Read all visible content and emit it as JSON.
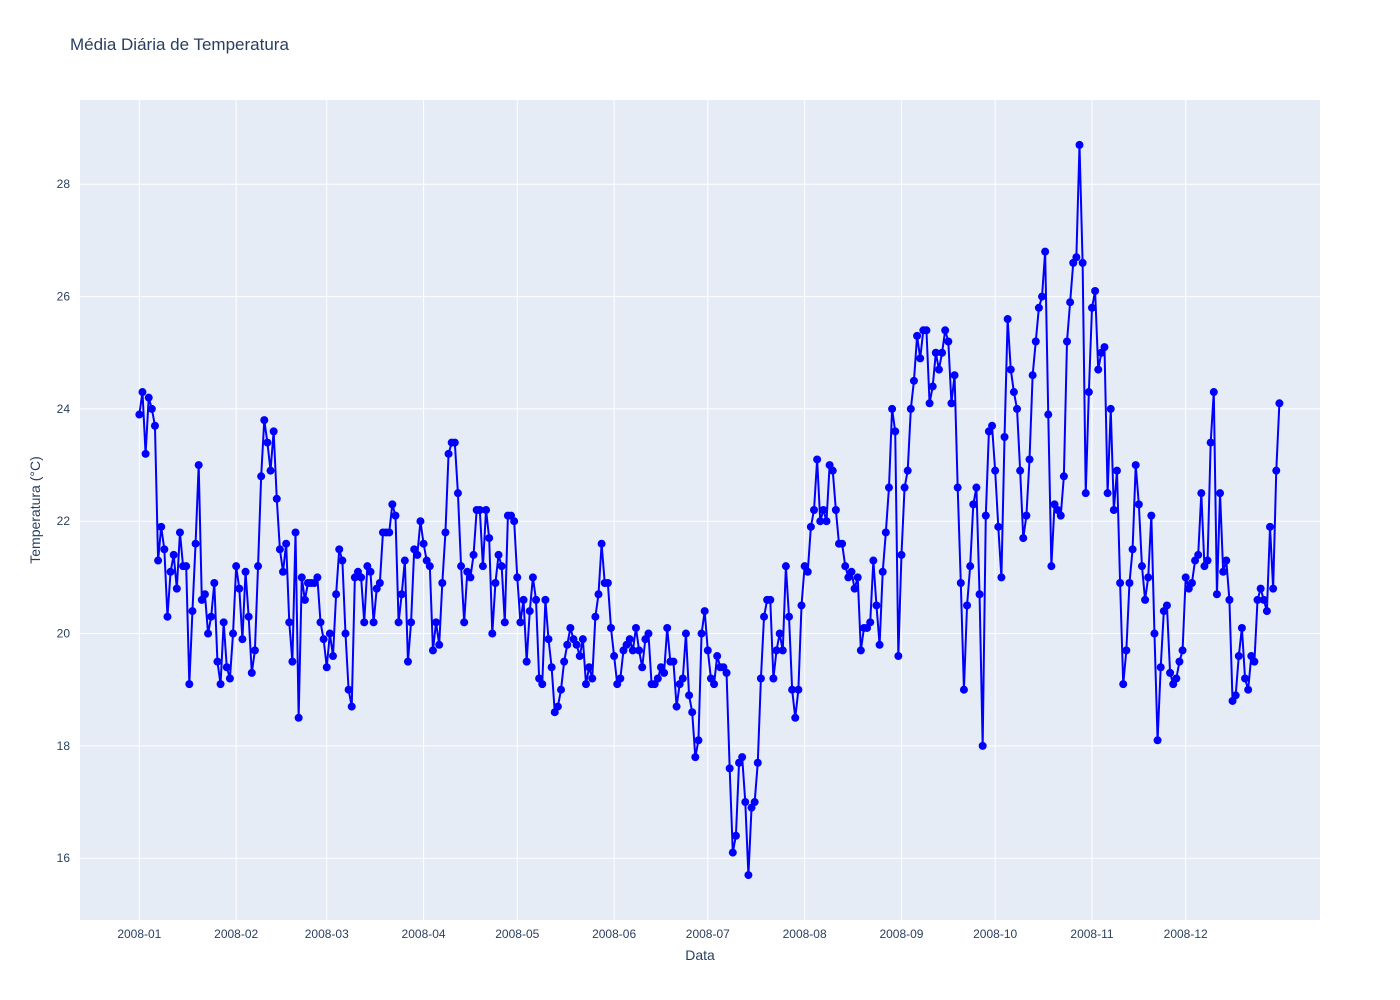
{
  "chart_data": {
    "type": "line",
    "title": "Média Diária de Temperatura",
    "xlabel": "Data",
    "ylabel": "Temperatura (°C)",
    "x_start": "2008-01-01",
    "x_tick_labels": [
      "2008-01",
      "2008-02",
      "2008-03",
      "2008-04",
      "2008-05",
      "2008-06",
      "2008-07",
      "2008-08",
      "2008-09",
      "2008-10",
      "2008-11",
      "2008-12"
    ],
    "y_ticks": [
      16,
      18,
      20,
      22,
      24,
      26,
      28
    ],
    "ylim": [
      14.9,
      29.5
    ],
    "xlim": [
      "2007-12-13",
      "2009-01-13"
    ],
    "grid": true,
    "mode": "lines+markers",
    "series": [
      {
        "color": "#0000ff",
        "values": [
          23.9,
          24.3,
          23.2,
          24.2,
          24.0,
          23.7,
          21.3,
          21.9,
          21.5,
          20.3,
          21.1,
          21.4,
          20.8,
          21.8,
          21.2,
          21.2,
          19.1,
          20.4,
          21.6,
          23.0,
          20.6,
          20.7,
          20.0,
          20.3,
          20.9,
          19.5,
          19.1,
          20.2,
          19.4,
          19.2,
          20.0,
          21.2,
          20.8,
          19.9,
          21.1,
          20.3,
          19.3,
          19.7,
          21.2,
          22.8,
          23.8,
          23.4,
          22.9,
          23.6,
          22.4,
          21.5,
          21.1,
          21.6,
          20.2,
          19.5,
          21.8,
          18.5,
          21.0,
          20.6,
          20.9,
          20.9,
          20.9,
          21.0,
          20.2,
          19.9,
          19.4,
          20.0,
          19.6,
          20.7,
          21.5,
          21.3,
          20.0,
          19.0,
          18.7,
          21.0,
          21.1,
          21.0,
          20.2,
          21.2,
          21.1,
          20.2,
          20.8,
          20.9,
          21.8,
          21.8,
          21.8,
          22.3,
          22.1,
          20.2,
          20.7,
          21.3,
          19.5,
          20.2,
          21.5,
          21.4,
          22.0,
          21.6,
          21.3,
          21.2,
          19.7,
          20.2,
          19.8,
          20.9,
          21.8,
          23.2,
          23.4,
          23.4,
          22.5,
          21.2,
          20.2,
          21.1,
          21.0,
          21.4,
          22.2,
          22.2,
          21.2,
          22.2,
          21.7,
          20.0,
          20.9,
          21.4,
          21.2,
          20.2,
          22.1,
          22.1,
          22.0,
          21.0,
          20.2,
          20.6,
          19.5,
          20.4,
          21.0,
          20.6,
          19.2,
          19.1,
          20.6,
          19.9,
          19.4,
          18.6,
          18.7,
          19.0,
          19.5,
          19.8,
          20.1,
          19.9,
          19.8,
          19.6,
          19.9,
          19.1,
          19.4,
          19.2,
          20.3,
          20.7,
          21.6,
          20.9,
          20.9,
          20.1,
          19.6,
          19.1,
          19.2,
          19.7,
          19.8,
          19.9,
          19.7,
          20.1,
          19.7,
          19.4,
          19.9,
          20.0,
          19.1,
          19.1,
          19.2,
          19.4,
          19.3,
          20.1,
          19.5,
          19.5,
          18.7,
          19.1,
          19.2,
          20.0,
          18.9,
          18.6,
          17.8,
          18.1,
          20.0,
          20.4,
          19.7,
          19.2,
          19.1,
          19.6,
          19.4,
          19.4,
          19.3,
          17.6,
          16.1,
          16.4,
          17.7,
          17.8,
          17.0,
          15.7,
          16.9,
          17.0,
          17.7,
          19.2,
          20.3,
          20.6,
          20.6,
          19.2,
          19.7,
          20.0,
          19.7,
          21.2,
          20.3,
          19.0,
          18.5,
          19.0,
          20.5,
          21.2,
          21.1,
          21.9,
          22.2,
          23.1,
          22.0,
          22.2,
          22.0,
          23.0,
          22.9,
          22.2,
          21.6,
          21.6,
          21.2,
          21.0,
          21.1,
          20.8,
          21.0,
          19.7,
          20.1,
          20.1,
          20.2,
          21.3,
          20.5,
          19.8,
          21.1,
          21.8,
          22.6,
          24.0,
          23.6,
          19.6,
          21.4,
          22.6,
          22.9,
          24.0,
          24.5,
          25.3,
          24.9,
          25.4,
          25.4,
          24.1,
          24.4,
          25.0,
          24.7,
          25.0,
          25.4,
          25.2,
          24.1,
          24.6,
          22.6,
          20.9,
          19.0,
          20.5,
          21.2,
          22.3,
          22.6,
          20.7,
          18.0,
          22.1,
          23.6,
          23.7,
          22.9,
          21.9,
          21.0,
          23.5,
          25.6,
          24.7,
          24.3,
          24.0,
          22.9,
          21.7,
          22.1,
          23.1,
          24.6,
          25.2,
          25.8,
          26.0,
          26.8,
          23.9,
          21.2,
          22.3,
          22.2,
          22.1,
          22.8,
          25.2,
          25.9,
          26.6,
          26.7,
          28.7,
          26.6,
          22.5,
          24.3,
          25.8,
          26.1,
          24.7,
          25.0,
          25.1,
          22.5,
          24.0,
          22.2,
          22.9,
          20.9,
          19.1,
          19.7,
          20.9,
          21.5,
          23.0,
          22.3,
          21.2,
          20.6,
          21.0,
          22.1,
          20.0,
          18.1,
          19.4,
          20.4,
          20.5,
          19.3,
          19.1,
          19.2,
          19.5,
          19.7,
          21.0,
          20.8,
          20.9,
          21.3,
          21.4,
          22.5,
          21.2,
          21.3,
          23.4,
          24.3,
          20.7,
          22.5,
          21.1,
          21.3,
          20.6,
          18.8,
          18.9,
          19.6,
          20.1,
          19.2,
          19.0,
          19.6,
          19.5,
          20.6,
          20.8,
          20.6,
          20.4,
          21.9,
          20.8,
          22.9,
          24.1
        ]
      }
    ]
  }
}
